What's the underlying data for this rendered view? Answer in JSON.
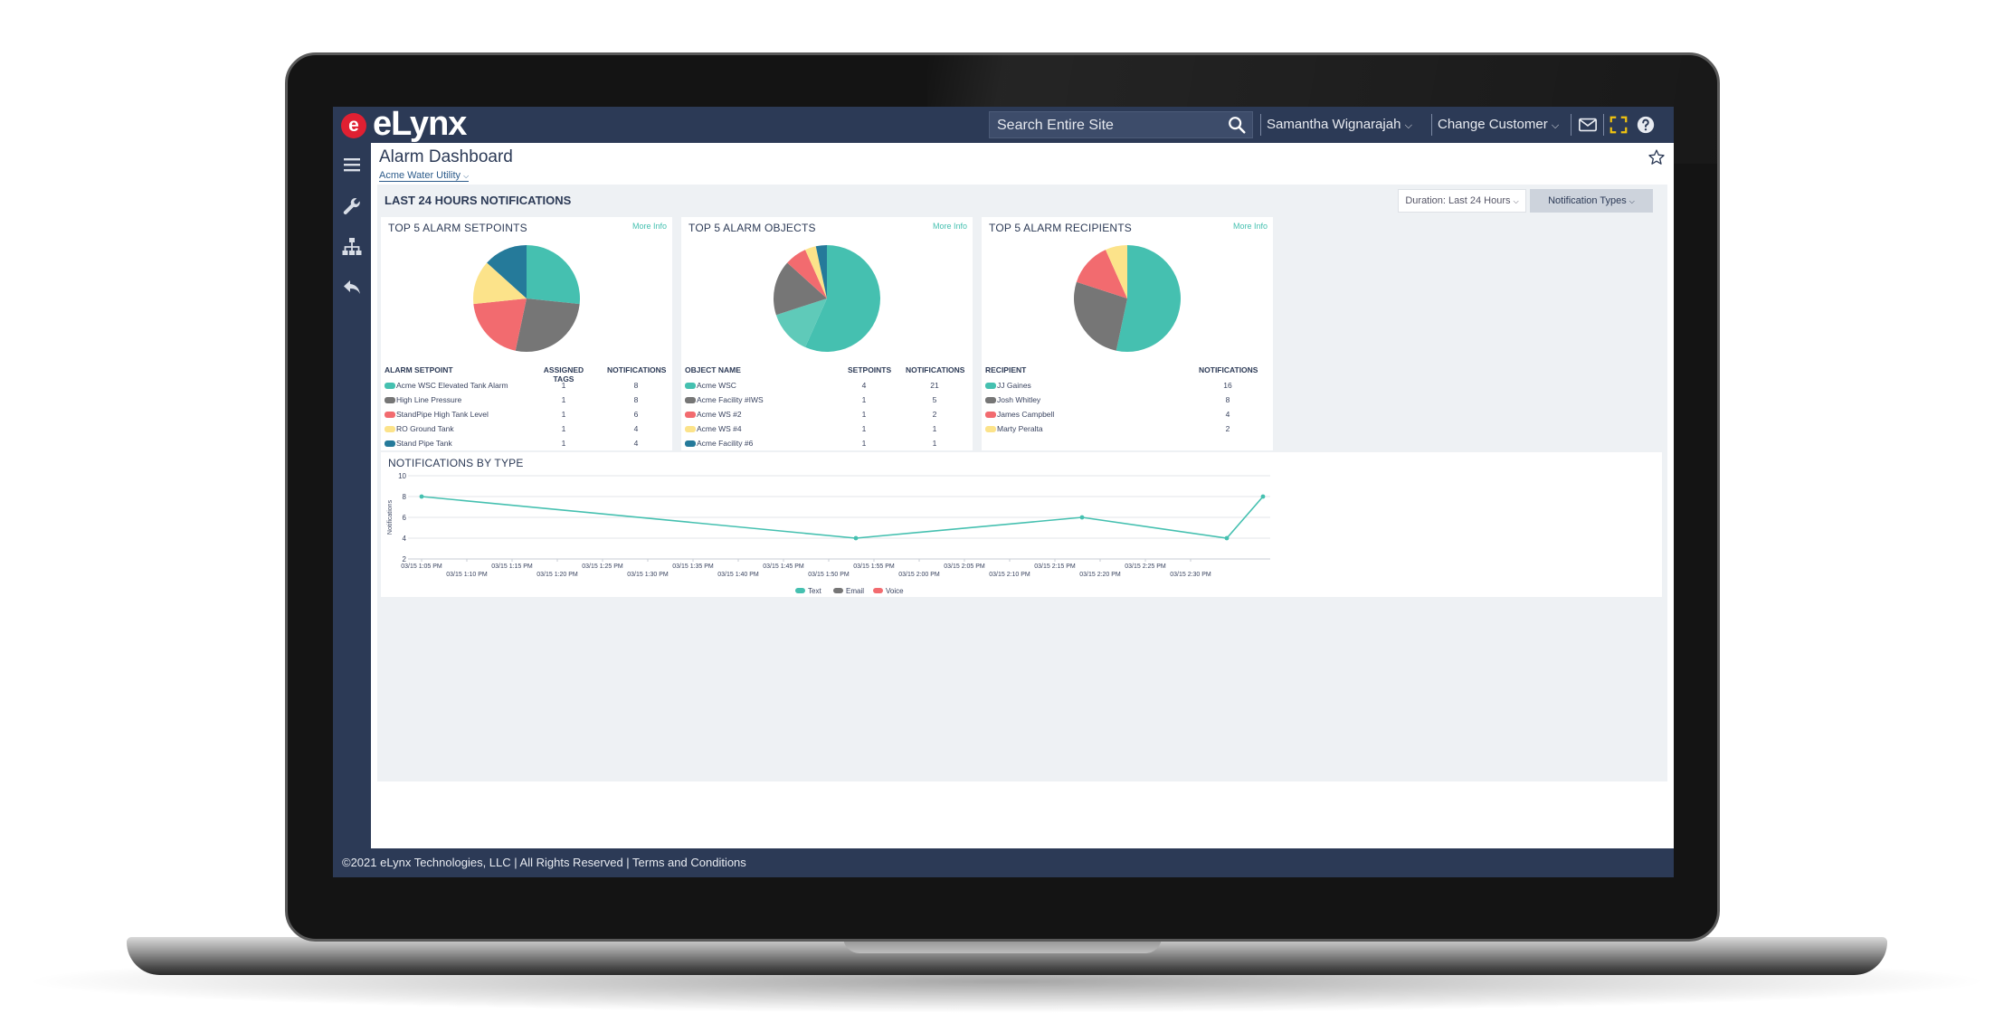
{
  "brand": {
    "logo_mark": "e",
    "logo_text": "eLynx"
  },
  "header": {
    "search_placeholder": "Search Entire Site",
    "user_menu": "Samantha Wignarajah",
    "customer_menu": "Change Customer",
    "icons": [
      "search-icon",
      "mail-icon",
      "fullscreen-icon",
      "help-icon"
    ]
  },
  "sidebar": {
    "icons": [
      "menu-icon",
      "wrench-icon",
      "hierarchy-icon",
      "back-icon"
    ]
  },
  "page": {
    "title": "Alarm Dashboard",
    "subtitle": "Acme Water Utility"
  },
  "notifications": {
    "panel_title": "LAST 24 HOURS NOTIFICATIONS",
    "duration_label": "Duration: Last 24 Hours",
    "types_label": "Notification Types"
  },
  "colors": {
    "teal": "#45c0b0",
    "gray": "#767676",
    "coral": "#f26b6f",
    "yellow": "#fce38a",
    "blue": "#257a9a",
    "teal_light": "#5fcab9"
  },
  "cards": [
    {
      "title": "TOP 5 ALARM SETPOINTS",
      "more_info": "More Info",
      "headers": [
        "ALARM SETPOINT",
        "ASSIGNED TAGS",
        "NOTIFICATIONS"
      ],
      "rows": [
        {
          "name": "Acme WSC Elevated Tank Alarm",
          "c1": "1",
          "c2": "8",
          "color": "#45c0b0"
        },
        {
          "name": "High Line Pressure",
          "c1": "1",
          "c2": "8",
          "color": "#767676"
        },
        {
          "name": "StandPipe High Tank Level",
          "c1": "1",
          "c2": "6",
          "color": "#f26b6f"
        },
        {
          "name": "RO Ground Tank",
          "c1": "1",
          "c2": "4",
          "color": "#fce38a"
        },
        {
          "name": "Stand Pipe Tank",
          "c1": "1",
          "c2": "4",
          "color": "#257a9a"
        }
      ]
    },
    {
      "title": "TOP 5 ALARM OBJECTS",
      "more_info": "More Info",
      "headers": [
        "OBJECT NAME",
        "SETPOINTS",
        "NOTIFICATIONS"
      ],
      "rows": [
        {
          "name": "Acme WSC",
          "c1": "4",
          "c2": "21",
          "color": "#45c0b0"
        },
        {
          "name": "Acme Facility #IWS",
          "c1": "1",
          "c2": "5",
          "color": "#767676"
        },
        {
          "name": "Acme WS #2",
          "c1": "1",
          "c2": "2",
          "color": "#f26b6f"
        },
        {
          "name": "Acme WS #4",
          "c1": "1",
          "c2": "1",
          "color": "#fce38a"
        },
        {
          "name": "Acme Facility #6",
          "c1": "1",
          "c2": "1",
          "color": "#257a9a"
        }
      ]
    },
    {
      "title": "TOP 5 ALARM RECIPIENTS",
      "more_info": "More Info",
      "headers": [
        "RECIPIENT",
        "",
        "NOTIFICATIONS"
      ],
      "rows": [
        {
          "name": "JJ Gaines",
          "c1": "",
          "c2": "16",
          "color": "#45c0b0"
        },
        {
          "name": "Josh Whitley",
          "c1": "",
          "c2": "8",
          "color": "#767676"
        },
        {
          "name": "James Campbell",
          "c1": "",
          "c2": "4",
          "color": "#f26b6f"
        },
        {
          "name": "Marty Peralta",
          "c1": "",
          "c2": "2",
          "color": "#fce38a"
        }
      ]
    }
  ],
  "chart_data": [
    {
      "type": "pie",
      "labels": [
        "Acme WSC Elevated Tank Alarm",
        "High Line Pressure",
        "StandPipe High Tank Level",
        "RO Ground Tank",
        "Stand Pipe Tank"
      ],
      "values": [
        8,
        8,
        6,
        4,
        4
      ],
      "colors": [
        "#45c0b0",
        "#767676",
        "#f26b6f",
        "#fce38a",
        "#257a9a"
      ]
    },
    {
      "type": "pie",
      "labels": [
        "Acme WSC",
        "Acme WSC",
        "Acme Facility #IWS",
        "Acme WS #2",
        "Acme WS #4",
        "Acme Facility #6"
      ],
      "values": [
        17,
        4,
        5,
        2,
        1,
        1
      ],
      "colors": [
        "#45c0b0",
        "#5fcab9",
        "#767676",
        "#f26b6f",
        "#fce38a",
        "#257a9a"
      ]
    },
    {
      "type": "pie",
      "labels": [
        "JJ Gaines",
        "Josh Whitley",
        "James Campbell",
        "Marty Peralta"
      ],
      "values": [
        16,
        8,
        4,
        2
      ],
      "colors": [
        "#45c0b0",
        "#767676",
        "#f26b6f",
        "#fce38a"
      ]
    },
    {
      "type": "line",
      "title": "NOTIFICATIONS BY TYPE",
      "ylabel": "Notifications",
      "ylim": [
        2,
        10
      ],
      "yticks": [
        2,
        4,
        6,
        8,
        10
      ],
      "xlim": [
        0,
        18.6
      ],
      "xticks": [
        "03/15 1:05 PM",
        "03/15 1:10 PM",
        "03/15 1:15 PM",
        "03/15 1:20 PM",
        "03/15 1:25 PM",
        "03/15 1:30 PM",
        "03/15 1:35 PM",
        "03/15 1:40 PM",
        "03/15 1:45 PM",
        "03/15 1:50 PM",
        "03/15 1:55 PM",
        "03/15 2:00 PM",
        "03/15 2:05 PM",
        "03/15 2:10 PM",
        "03/15 2:15 PM",
        "03/15 2:20 PM",
        "03/15 2:25 PM",
        "03/15 2:30 PM"
      ],
      "series": [
        {
          "name": "Text",
          "color": "#45c0b0",
          "x": [
            0,
            9.6,
            14.6,
            17.8,
            18.6
          ],
          "y": [
            8,
            4,
            6,
            4,
            8
          ]
        }
      ],
      "legend": [
        {
          "name": "Text",
          "color": "#45c0b0"
        },
        {
          "name": "Email",
          "color": "#767676"
        },
        {
          "name": "Voice",
          "color": "#f26b6f"
        }
      ],
      "legend_position": "bottom",
      "grid": true
    }
  ],
  "footer": {
    "text": "©2021 eLynx Technologies, LLC | All Rights Reserved | Terms and Conditions"
  }
}
